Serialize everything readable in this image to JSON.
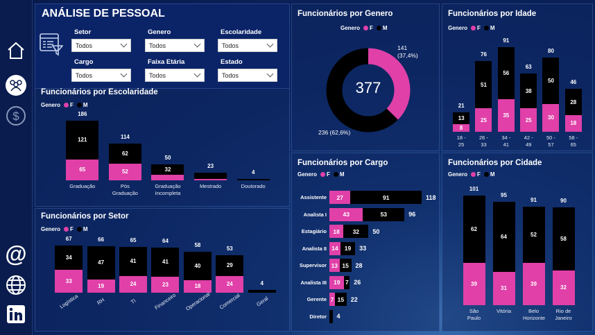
{
  "colors": {
    "female": "#e040a8",
    "male": "#000000",
    "sidebar": "#0a1c4e"
  },
  "sidebar": {
    "icons": [
      "home-icon",
      "people-icon",
      "dollar-icon",
      "at-icon",
      "globe-icon",
      "linkedin-icon"
    ]
  },
  "header": {
    "title": "ANÁLISE DE PESSOAL"
  },
  "filters": [
    {
      "label": "Setor",
      "value": "Todos"
    },
    {
      "label": "Genero",
      "value": "Todos"
    },
    {
      "label": "Escolaridade",
      "value": "Todos"
    },
    {
      "label": "Cargo",
      "value": "Todos"
    },
    {
      "label": "Faixa Etária",
      "value": "Todos"
    },
    {
      "label": "Estado",
      "value": "Todos"
    }
  ],
  "legend": {
    "title": "Genero",
    "f": "F",
    "m": "M"
  },
  "chart_data": [
    {
      "id": "escolaridade",
      "type": "bar",
      "stacked": true,
      "title": "Funcionários por Escolaridade",
      "categories": [
        "Graduação",
        "Pós Graduação",
        "Graduação Incompleta",
        "Mestrado",
        "Doutorado"
      ],
      "series": [
        {
          "name": "F",
          "values": [
            65,
            52,
            18,
            5,
            0
          ]
        },
        {
          "name": "M",
          "values": [
            121,
            62,
            32,
            18,
            4
          ]
        }
      ],
      "totals": [
        186,
        114,
        50,
        23,
        4
      ]
    },
    {
      "id": "setor",
      "type": "bar",
      "stacked": true,
      "title": "Funcionários por Setor",
      "categories": [
        "Logística",
        "RH",
        "TI",
        "Financeiro",
        "Operacional",
        "Comercial",
        "Geral"
      ],
      "series": [
        {
          "name": "F",
          "values": [
            33,
            19,
            24,
            23,
            18,
            24,
            0
          ]
        },
        {
          "name": "M",
          "values": [
            34,
            47,
            41,
            41,
            40,
            29,
            4
          ]
        }
      ],
      "totals": [
        67,
        66,
        65,
        64,
        58,
        53,
        4
      ]
    },
    {
      "id": "genero",
      "type": "pie",
      "donut": true,
      "title": "Funcionários por Genero",
      "total": "377",
      "categories": [
        "F",
        "M"
      ],
      "values": [
        141,
        236
      ],
      "labels": [
        "141 (37,4%)",
        "236 (62,6%)"
      ]
    },
    {
      "id": "cargo",
      "type": "bar",
      "orientation": "horizontal",
      "stacked": true,
      "title": "Funcionários por Cargo",
      "categories": [
        "Assistente",
        "Analista I",
        "Estagiário",
        "Analista II",
        "Supervisor",
        "Analista III",
        "Gerente",
        "Diretor"
      ],
      "series": [
        {
          "name": "F",
          "values": [
            27,
            43,
            18,
            14,
            13,
            19,
            7,
            0
          ]
        },
        {
          "name": "M",
          "values": [
            91,
            53,
            32,
            19,
            15,
            7,
            15,
            4
          ]
        }
      ],
      "totals": [
        118,
        96,
        50,
        33,
        28,
        26,
        22,
        4
      ]
    },
    {
      "id": "idade",
      "type": "bar",
      "stacked": true,
      "title": "Funcionários por Idade",
      "categories": [
        "18 - 25",
        "26 - 33",
        "34 - 41",
        "42 - 49",
        "50 - 57",
        "58 - 65"
      ],
      "series": [
        {
          "name": "F",
          "values": [
            8,
            25,
            35,
            25,
            30,
            18
          ]
        },
        {
          "name": "M",
          "values": [
            13,
            51,
            56,
            38,
            50,
            28
          ]
        }
      ],
      "totals": [
        21,
        76,
        91,
        63,
        80,
        46
      ]
    },
    {
      "id": "cidade",
      "type": "bar",
      "stacked": true,
      "title": "Funcionários por Cidade",
      "categories": [
        "São Paulo",
        "Vitória",
        "Belo Horizonte",
        "Rio de Janeiro"
      ],
      "series": [
        {
          "name": "F",
          "values": [
            39,
            31,
            39,
            32
          ]
        },
        {
          "name": "M",
          "values": [
            62,
            64,
            52,
            58
          ]
        }
      ],
      "totals": [
        101,
        95,
        91,
        90
      ]
    }
  ]
}
